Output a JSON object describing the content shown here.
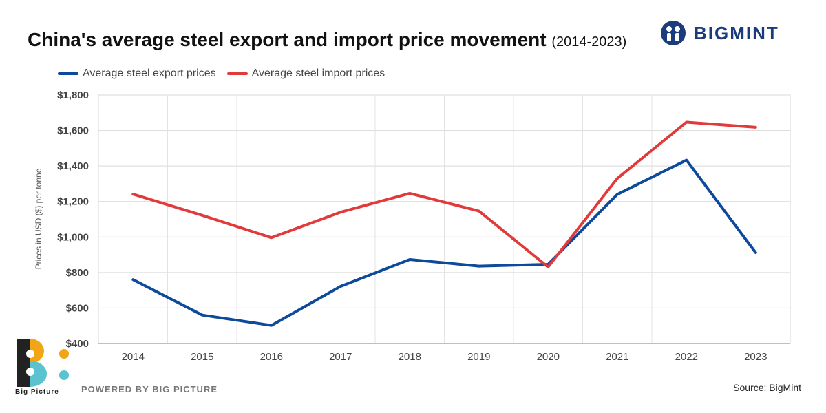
{
  "header": {
    "title": "China's average steel export and import price movement",
    "subtitle": "(2014-2023)"
  },
  "brand": {
    "name": "BIGMINT",
    "icon": "bigmint-logo-icon",
    "color": "#1a3c7c"
  },
  "footer": {
    "powered_by": "POWERED BY BIG PICTURE",
    "logo_label": "Big Picture",
    "source": "Source: BigMint"
  },
  "chart_data": {
    "type": "line",
    "title": "China's average steel export and import price movement",
    "subtitle": "(2014-2023)",
    "xlabel": "",
    "ylabel": "Prices in USD ($) per tonne",
    "categories": [
      "2014",
      "2015",
      "2016",
      "2017",
      "2018",
      "2019",
      "2020",
      "2021",
      "2022",
      "2023"
    ],
    "ylim": [
      400,
      1800
    ],
    "yticks": [
      400,
      600,
      800,
      1000,
      1200,
      1400,
      1600,
      1800
    ],
    "ytick_labels": [
      "$400",
      "$600",
      "$800",
      "$1,000",
      "$1,200",
      "$1,400",
      "$1,600",
      "$1,800"
    ],
    "grid": true,
    "legend_position": "top-left",
    "series": [
      {
        "name": "Average steel export prices",
        "color": "#0d4a9b",
        "values": [
          760,
          560,
          502,
          722,
          873,
          836,
          846,
          1240,
          1433,
          912
        ]
      },
      {
        "name": "Average steel import prices",
        "color": "#e23a3a",
        "values": [
          1241,
          1122,
          996,
          1140,
          1246,
          1146,
          831,
          1330,
          1647,
          1618
        ]
      }
    ]
  }
}
